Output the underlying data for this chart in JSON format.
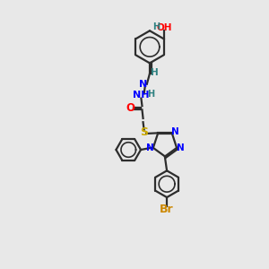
{
  "background_color": "#e8e8e8",
  "bond_color": "#2d2d2d",
  "colors": {
    "N": "#0000ff",
    "O": "#ff0000",
    "S": "#ccaa00",
    "Br": "#cc8800",
    "H": "#2d8080",
    "C": "#2d2d2d"
  },
  "figsize": [
    3.0,
    3.0
  ],
  "dpi": 100
}
